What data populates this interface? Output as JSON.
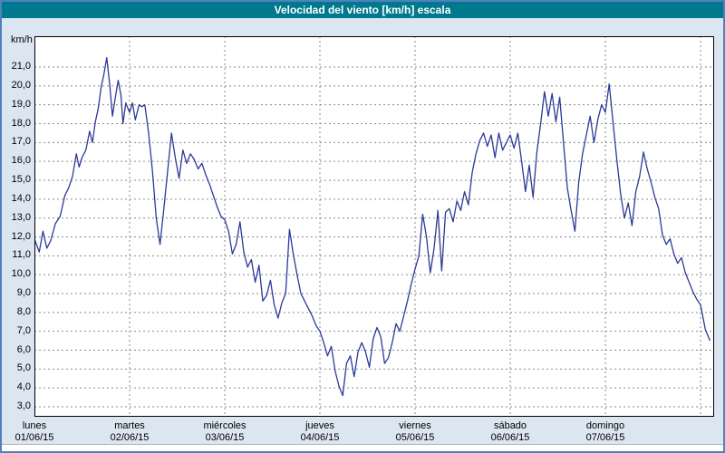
{
  "title": "Velocidad del viento [km/h] escala",
  "colors": {
    "frame_border": "#4f81bd",
    "titlebar": "#00798e",
    "background": "#dce6f1",
    "plot_bg": "#ffffff",
    "line": "#2b3a97",
    "grid": "#8a8a8a",
    "plot_border": "#000000",
    "text": "#000000"
  },
  "chart_data": {
    "type": "line",
    "title": "Velocidad del viento [km/h] escala",
    "ylabel": "km/h",
    "xlabel": "",
    "grid": "dashed",
    "legend": "none",
    "ylim": [
      2.5,
      22.6
    ],
    "y_ticks": [
      "21,0",
      "20,0",
      "19,0",
      "18,0",
      "17,0",
      "16,0",
      "15,0",
      "14,0",
      "13,0",
      "12,0",
      "11,0",
      "10,0",
      "9,0",
      "8,0",
      "7,0",
      "6,0",
      "5,0",
      "4,0",
      "3,0"
    ],
    "days": [
      {
        "name": "lunes",
        "date": "01/06/15"
      },
      {
        "name": "martes",
        "date": "02/06/15"
      },
      {
        "name": "miércoles",
        "date": "03/06/15"
      },
      {
        "name": "jueves",
        "date": "04/06/15"
      },
      {
        "name": "viernes",
        "date": "05/06/15"
      },
      {
        "name": "sábado",
        "date": "06/06/15"
      },
      {
        "name": "domingo",
        "date": "07/06/15"
      }
    ],
    "series": [
      {
        "points": [
          [
            0.0,
            11.9
          ],
          [
            0.05,
            11.2
          ],
          [
            0.09,
            12.3
          ],
          [
            0.13,
            11.4
          ],
          [
            0.17,
            11.8
          ],
          [
            0.22,
            12.7
          ],
          [
            0.27,
            13.1
          ],
          [
            0.32,
            14.2
          ],
          [
            0.36,
            14.6
          ],
          [
            0.4,
            15.2
          ],
          [
            0.44,
            16.4
          ],
          [
            0.47,
            15.7
          ],
          [
            0.5,
            16.2
          ],
          [
            0.54,
            16.6
          ],
          [
            0.58,
            17.6
          ],
          [
            0.61,
            17.0
          ],
          [
            0.64,
            18.1
          ],
          [
            0.67,
            18.8
          ],
          [
            0.7,
            19.9
          ],
          [
            0.73,
            20.6
          ],
          [
            0.76,
            21.5
          ],
          [
            0.79,
            20.1
          ],
          [
            0.82,
            18.4
          ],
          [
            0.85,
            19.4
          ],
          [
            0.88,
            20.3
          ],
          [
            0.91,
            19.5
          ],
          [
            0.93,
            18.0
          ],
          [
            0.96,
            19.1
          ],
          [
            1.0,
            18.6
          ],
          [
            1.03,
            19.1
          ],
          [
            1.06,
            18.2
          ],
          [
            1.1,
            19.0
          ],
          [
            1.13,
            18.9
          ],
          [
            1.16,
            19.0
          ],
          [
            1.2,
            17.5
          ],
          [
            1.24,
            15.5
          ],
          [
            1.28,
            13.0
          ],
          [
            1.32,
            11.6
          ],
          [
            1.36,
            13.5
          ],
          [
            1.4,
            15.5
          ],
          [
            1.44,
            17.5
          ],
          [
            1.48,
            16.2
          ],
          [
            1.52,
            15.1
          ],
          [
            1.56,
            16.6
          ],
          [
            1.6,
            15.9
          ],
          [
            1.64,
            16.4
          ],
          [
            1.68,
            16.1
          ],
          [
            1.72,
            15.6
          ],
          [
            1.76,
            15.9
          ],
          [
            1.8,
            15.3
          ],
          [
            1.84,
            14.8
          ],
          [
            1.88,
            14.2
          ],
          [
            1.92,
            13.6
          ],
          [
            1.96,
            13.1
          ],
          [
            2.0,
            12.9
          ],
          [
            2.04,
            12.3
          ],
          [
            2.08,
            11.1
          ],
          [
            2.12,
            11.6
          ],
          [
            2.16,
            12.8
          ],
          [
            2.2,
            11.2
          ],
          [
            2.24,
            10.4
          ],
          [
            2.28,
            10.8
          ],
          [
            2.32,
            9.6
          ],
          [
            2.36,
            10.5
          ],
          [
            2.4,
            8.6
          ],
          [
            2.44,
            8.9
          ],
          [
            2.48,
            9.7
          ],
          [
            2.52,
            8.4
          ],
          [
            2.56,
            7.7
          ],
          [
            2.6,
            8.5
          ],
          [
            2.64,
            9.0
          ],
          [
            2.68,
            12.4
          ],
          [
            2.72,
            11.1
          ],
          [
            2.76,
            10.0
          ],
          [
            2.8,
            9.0
          ],
          [
            2.84,
            8.6
          ],
          [
            2.88,
            8.2
          ],
          [
            2.92,
            7.8
          ],
          [
            2.96,
            7.3
          ],
          [
            3.0,
            7.0
          ],
          [
            3.04,
            6.4
          ],
          [
            3.08,
            5.7
          ],
          [
            3.12,
            6.2
          ],
          [
            3.16,
            4.9
          ],
          [
            3.2,
            4.1
          ],
          [
            3.24,
            3.6
          ],
          [
            3.28,
            5.3
          ],
          [
            3.32,
            5.7
          ],
          [
            3.36,
            4.6
          ],
          [
            3.4,
            5.9
          ],
          [
            3.44,
            6.4
          ],
          [
            3.48,
            5.9
          ],
          [
            3.52,
            5.1
          ],
          [
            3.56,
            6.6
          ],
          [
            3.6,
            7.2
          ],
          [
            3.64,
            6.7
          ],
          [
            3.68,
            5.3
          ],
          [
            3.72,
            5.6
          ],
          [
            3.76,
            6.4
          ],
          [
            3.8,
            7.4
          ],
          [
            3.84,
            7.0
          ],
          [
            3.88,
            7.8
          ],
          [
            3.92,
            8.6
          ],
          [
            3.96,
            9.5
          ],
          [
            4.0,
            10.3
          ],
          [
            4.04,
            11.0
          ],
          [
            4.08,
            13.2
          ],
          [
            4.12,
            12.0
          ],
          [
            4.16,
            10.1
          ],
          [
            4.2,
            11.4
          ],
          [
            4.24,
            13.4
          ],
          [
            4.28,
            10.2
          ],
          [
            4.32,
            13.3
          ],
          [
            4.36,
            13.5
          ],
          [
            4.4,
            12.8
          ],
          [
            4.44,
            13.9
          ],
          [
            4.48,
            13.4
          ],
          [
            4.52,
            14.4
          ],
          [
            4.56,
            13.7
          ],
          [
            4.6,
            15.4
          ],
          [
            4.64,
            16.4
          ],
          [
            4.68,
            17.1
          ],
          [
            4.72,
            17.5
          ],
          [
            4.76,
            16.8
          ],
          [
            4.8,
            17.4
          ],
          [
            4.84,
            16.2
          ],
          [
            4.88,
            17.5
          ],
          [
            4.92,
            16.6
          ],
          [
            4.96,
            17.0
          ],
          [
            5.0,
            17.4
          ],
          [
            5.04,
            16.7
          ],
          [
            5.08,
            17.5
          ],
          [
            5.12,
            16.0
          ],
          [
            5.16,
            14.4
          ],
          [
            5.2,
            15.8
          ],
          [
            5.24,
            14.1
          ],
          [
            5.28,
            16.5
          ],
          [
            5.32,
            18.0
          ],
          [
            5.36,
            19.7
          ],
          [
            5.4,
            18.4
          ],
          [
            5.44,
            19.6
          ],
          [
            5.48,
            18.1
          ],
          [
            5.52,
            19.4
          ],
          [
            5.56,
            17.0
          ],
          [
            5.6,
            14.6
          ],
          [
            5.64,
            13.4
          ],
          [
            5.68,
            12.3
          ],
          [
            5.72,
            14.9
          ],
          [
            5.76,
            16.4
          ],
          [
            5.8,
            17.4
          ],
          [
            5.84,
            18.4
          ],
          [
            5.88,
            17.0
          ],
          [
            5.92,
            18.2
          ],
          [
            5.96,
            19.0
          ],
          [
            6.0,
            18.6
          ],
          [
            6.04,
            20.1
          ],
          [
            6.08,
            18.1
          ],
          [
            6.12,
            16.1
          ],
          [
            6.16,
            14.3
          ],
          [
            6.2,
            13.0
          ],
          [
            6.24,
            13.8
          ],
          [
            6.28,
            12.6
          ],
          [
            6.32,
            14.4
          ],
          [
            6.36,
            15.2
          ],
          [
            6.4,
            16.5
          ],
          [
            6.44,
            15.6
          ],
          [
            6.48,
            14.9
          ],
          [
            6.52,
            14.1
          ],
          [
            6.56,
            13.5
          ],
          [
            6.6,
            12.1
          ],
          [
            6.64,
            11.6
          ],
          [
            6.68,
            11.9
          ],
          [
            6.72,
            11.1
          ],
          [
            6.76,
            10.6
          ],
          [
            6.8,
            10.9
          ],
          [
            6.84,
            10.1
          ],
          [
            6.88,
            9.6
          ],
          [
            6.92,
            9.1
          ],
          [
            6.96,
            8.7
          ],
          [
            7.0,
            8.4
          ],
          [
            7.05,
            7.1
          ],
          [
            7.1,
            6.5
          ]
        ]
      }
    ]
  }
}
